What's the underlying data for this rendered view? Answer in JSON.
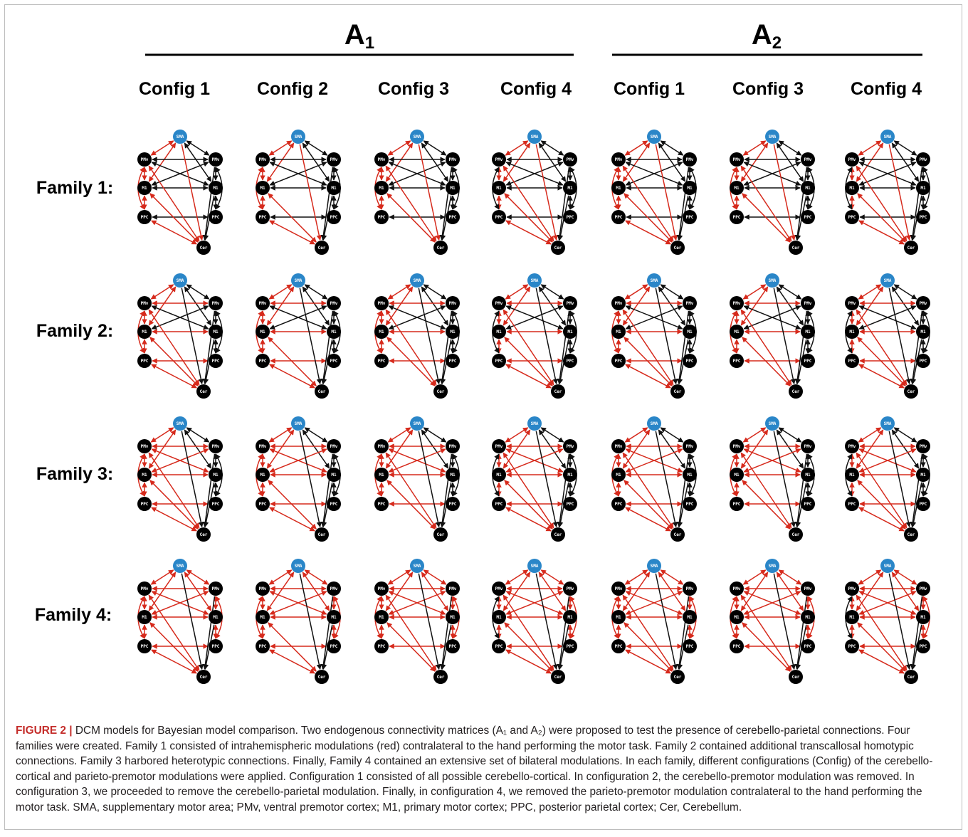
{
  "groups": [
    {
      "label": "A",
      "sub": "1"
    },
    {
      "label": "A",
      "sub": "2"
    }
  ],
  "configs": [
    "Config 1",
    "Config 2",
    "Config 3",
    "Config 4",
    "Config 1",
    "Config 3",
    "Config 4"
  ],
  "families": [
    "Family 1:",
    "Family 2:",
    "Family 3:",
    "Family 4:"
  ],
  "node_labels": {
    "sma": "SMA",
    "pmv": "PMv",
    "m1": "M1",
    "ppc": "PPC",
    "cer": "Cer"
  },
  "colors": {
    "modulated": "#d62a1c",
    "fixed": "#111111",
    "sma_node": "#2a86c8",
    "node": "#000000"
  },
  "caption": {
    "label": "FIGURE 2 |",
    "text": "DCM models for Bayesian model comparison. Two endogenous connectivity matrices (A₁ and A₂) were proposed to test the presence of cerebello-parietal connections. Four families were created. Family 1 consisted of intrahemispheric modulations (red) contralateral to the hand performing the motor task. Family 2 contained additional transcallosal homotypic connections. Family 3 harbored heterotypic connections. Finally, Family 4 contained an extensive set of bilateral modulations. In each family, different configurations (Config) of the cerebello-cortical and parieto-premotor modulations were applied. Configuration 1 consisted of all possible cerebello-cortical. In configuration 2, the cerebello-premotor modulation was removed. In configuration 3, we proceeded to remove the cerebello-parietal modulation. Finally, in configuration 4, we removed the parieto-premotor modulation contralateral to the hand performing the motor task. SMA, supplementary motor area; PMv, ventral premotor cortex; M1, primary motor cortex; PPC, posterior parietal cortex; Cer, Cerebellum."
  }
}
